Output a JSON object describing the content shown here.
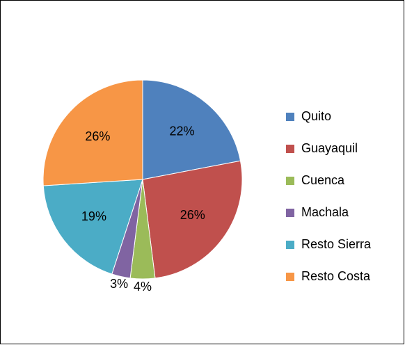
{
  "chart_data": {
    "type": "pie",
    "categories": [
      "Quito",
      "Guayaquil",
      "Cuenca",
      "Machala",
      "Resto Sierra",
      "Resto Costa"
    ],
    "values": [
      22,
      26,
      4,
      3,
      19,
      26
    ],
    "value_labels": [
      "22%",
      "26%",
      "4%",
      "3%",
      "19%",
      "26%"
    ],
    "colors": [
      "#4f81bd",
      "#c0504d",
      "#9bbb59",
      "#8064a2",
      "#4bacc6",
      "#f79646"
    ],
    "legend": "right"
  }
}
